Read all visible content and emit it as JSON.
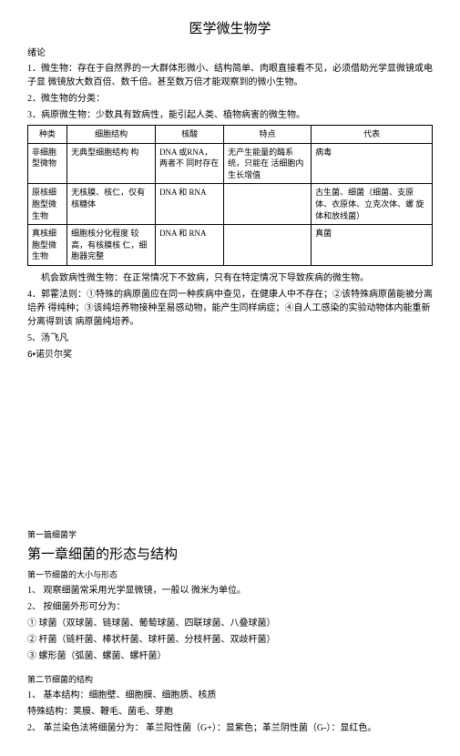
{
  "title": "医学微生物学",
  "intro_label": "绪论",
  "intro": {
    "p1": "1．微生物：存在于自然界的一大群体形微小、结构简单、肉眼直接看不见，必须借助光学显微镜或电子显 微镜放大数百倍、数千倍。甚至数万倍才能观察到的微小生物。",
    "p2": "2．微生物的分类：",
    "p3": "3．病原微生物：少数具有致病性，能引起人类、植物病害的微生物。"
  },
  "table": {
    "headers": [
      "种类",
      "细胞结构",
      "核酸",
      "特点",
      "代表"
    ],
    "rows": [
      {
        "c1": "非细胞型微物",
        "c2": "无典型细胞结构  构",
        "c3": "DNA               或RNA，两者不 同时存在",
        "c4": "无产生能量的酶系统，只能在 活细胞内生长增值",
        "c5": "病毒"
      },
      {
        "c1": "原核细胞型微生物",
        "c2": "无核膜、核仁，仅有核糖体",
        "c3": "DNA 和 RNA",
        "c4": "",
        "c5": "古生菌、细菌（细菌、支原 体、衣原体、立克次体、螺 旋体和放线菌）"
      },
      {
        "c1": "真核细胞型微生物",
        "c2": "细胞核分化程度  较高，有核膜核 仁，细胞器完整",
        "c3": "DNA 和 RNA",
        "c4": "",
        "c5": "真菌"
      }
    ]
  },
  "after_table": {
    "p1": "机会致病性微生物：在正常情况下不致病，只有在特定情况下导致疾病的微生物。",
    "p2": "4．郭霍法则：①特殊的病原菌应在同一种疾病中查见，在健康人中不存在；②该特殊病原菌能被分离培养 得纯种；③该纯培养物接种至易感动物，能产生同样病症；④自人工感染的实验动物体内能重新分离得到该 病原菌纯培养。",
    "p3": "5、汤飞凡",
    "p4": "6•诺贝尔奖"
  },
  "chapter": {
    "pre": "第一篇细菌学",
    "title": "第一章细菌的形态与结构",
    "sec1_label": "第一节细菌的大小与形态",
    "sec1": {
      "i1": "1、 观察细菌常采用光学显微镜，一般以      微米为单位。",
      "i2": "2、 按细菌外形可分为：",
      "i3": "① 球菌（双球菌、链球菌、葡萄球菌、四联球菌、八叠球菌）",
      "i4": "② 杆菌（链杆菌、棒状杆菌、球杆菌、分枝杆菌、双歧杆菌）",
      "i5": "③ 螺形菌（弧菌、螺菌、螺杆菌）"
    },
    "sec2_label": "第二节细菌的结构",
    "sec2": {
      "i1": "1、 基本结构：细胞壁、细胞膜、细胞质、核质",
      "i2": "特殊结构：荚膜、鞭毛、菌毛、芽胞",
      "i3": "2、 革兰染色法将细菌分为：          革兰阳性菌（G+）：显紫色；革兰阴性菌（G-）：显红色。"
    }
  }
}
